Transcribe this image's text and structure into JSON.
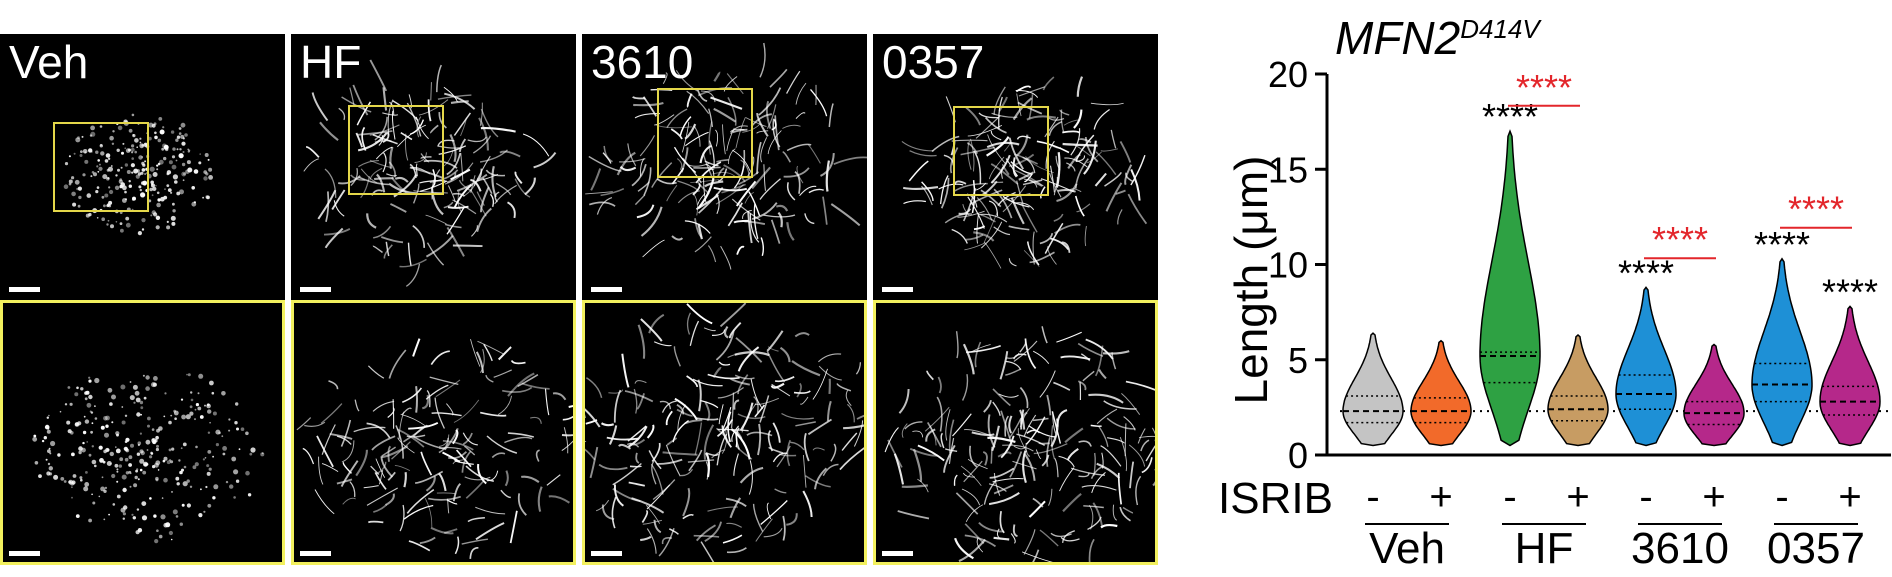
{
  "micrograph_panels": [
    {
      "label": "Veh"
    },
    {
      "label": "HF"
    },
    {
      "label": "3610"
    },
    {
      "label": "0357"
    }
  ],
  "colors": {
    "inset_box": "#e4d74a",
    "significance_black": "#000000",
    "significance_red": "#e3262b"
  },
  "chart_data": {
    "type": "violin",
    "title_main": "MFN2",
    "title_superscript": "D414V",
    "ylabel": "Length (μm)",
    "ylim": [
      0,
      20
    ],
    "yticks": [
      "0",
      "5",
      "10",
      "15",
      "20"
    ],
    "row_label": "ISRIB",
    "groups": [
      "Veh",
      "HF",
      "3610",
      "0357"
    ],
    "reference_line_y": 2.3,
    "violins": [
      {
        "group": "Veh",
        "isrib": "-",
        "color": "#c4c4c4",
        "max": 6.4,
        "median": 2.3,
        "q1": 1.7,
        "q3": 3.1,
        "sig": ""
      },
      {
        "group": "Veh",
        "isrib": "+",
        "color": "#f26a2a",
        "max": 6.0,
        "median": 2.3,
        "q1": 1.7,
        "q3": 3.0,
        "sig": ""
      },
      {
        "group": "HF",
        "isrib": "-",
        "color": "#2ea143",
        "max": 17.0,
        "median": 5.2,
        "q1": 3.8,
        "q3": 5.4,
        "sig": "****"
      },
      {
        "group": "HF",
        "isrib": "+",
        "color": "#c79c63",
        "max": 6.3,
        "median": 2.4,
        "q1": 1.8,
        "q3": 3.1,
        "sig": ""
      },
      {
        "group": "3610",
        "isrib": "-",
        "color": "#1e90d6",
        "max": 8.8,
        "median": 3.2,
        "q1": 2.4,
        "q3": 4.2,
        "sig": "****"
      },
      {
        "group": "3610",
        "isrib": "+",
        "color": "#b5288a",
        "max": 5.8,
        "median": 2.2,
        "q1": 1.6,
        "q3": 2.8,
        "sig": ""
      },
      {
        "group": "0357",
        "isrib": "-",
        "color": "#1e90d6",
        "max": 10.3,
        "median": 3.7,
        "q1": 2.8,
        "q3": 4.8,
        "sig": "****"
      },
      {
        "group": "0357",
        "isrib": "+",
        "color": "#b5288a",
        "max": 7.8,
        "median": 2.8,
        "q1": 2.1,
        "q3": 3.6,
        "sig": "****"
      }
    ],
    "pairwise_significance": [
      {
        "group": "HF",
        "label": "****",
        "y": 19.8
      },
      {
        "group": "3610",
        "label": "****",
        "y": 11.8
      },
      {
        "group": "0357",
        "label": "****",
        "y": 13.4
      }
    ]
  }
}
